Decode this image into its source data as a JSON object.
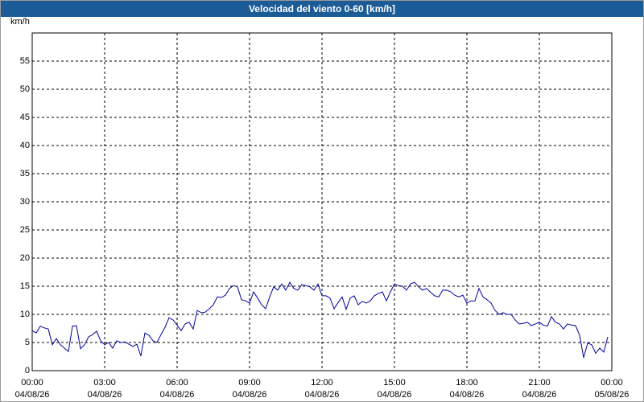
{
  "chart_data": {
    "type": "line",
    "title": "Velocidad del viento 0-60 [km/h]",
    "y_label": "km/h",
    "x": [
      0,
      10,
      20,
      30,
      40,
      50,
      60,
      70,
      80,
      90,
      100,
      110,
      120,
      130,
      140,
      150,
      160,
      170,
      180,
      190,
      200,
      210,
      220,
      230,
      240,
      250,
      260,
      270,
      280,
      290,
      300,
      310,
      320,
      330,
      340,
      350,
      360,
      370,
      380,
      390,
      400,
      410,
      420,
      430,
      440,
      450,
      460,
      470,
      480,
      490,
      500,
      510,
      520,
      530,
      540,
      550,
      560,
      570,
      580,
      590,
      600,
      610,
      620,
      630,
      640,
      650,
      660,
      670,
      680,
      690,
      700,
      710,
      720,
      730,
      740,
      750,
      760,
      770,
      780,
      790,
      800,
      810,
      820,
      830,
      840,
      850,
      860,
      870,
      880,
      890,
      900,
      910,
      920,
      930,
      940,
      950,
      960,
      970,
      980,
      990,
      1000,
      1010,
      1020,
      1030,
      1040,
      1050,
      1060,
      1070,
      1080,
      1090,
      1100,
      1110,
      1120,
      1130,
      1140,
      1150,
      1160,
      1170,
      1180,
      1190,
      1200,
      1210,
      1220,
      1230,
      1240,
      1250,
      1260,
      1270,
      1280,
      1290,
      1300,
      1310,
      1320,
      1330,
      1340,
      1350,
      1360,
      1370,
      1380,
      1390,
      1400,
      1410,
      1420,
      1430
    ],
    "series": [
      {
        "color": "#00009c",
        "values": [
          7.1,
          6.7,
          7.9,
          7.6,
          7.4,
          4.6,
          5.7,
          4.6,
          4.0,
          3.4,
          7.9,
          8.0,
          3.9,
          4.6,
          6.0,
          6.4,
          7.0,
          5.3,
          4.6,
          5.0,
          4.0,
          5.3,
          5.0,
          5.1,
          4.7,
          4.3,
          4.7,
          2.6,
          6.7,
          6.3,
          5.3,
          5.0,
          6.4,
          7.7,
          9.4,
          9.0,
          8.1,
          7.1,
          8.3,
          8.6,
          7.4,
          10.7,
          10.3,
          10.4,
          11.0,
          11.7,
          13.1,
          13.0,
          13.4,
          14.6,
          15.1,
          14.9,
          12.6,
          12.4,
          12.0,
          14.0,
          12.9,
          11.7,
          11.0,
          13.1,
          14.9,
          14.3,
          15.4,
          14.3,
          15.7,
          14.6,
          14.3,
          15.3,
          15.1,
          14.9,
          14.3,
          15.4,
          13.3,
          13.3,
          12.9,
          11.0,
          12.1,
          13.1,
          10.9,
          12.9,
          13.3,
          11.7,
          12.3,
          12.0,
          12.4,
          13.3,
          13.7,
          14.0,
          12.4,
          14.0,
          15.4,
          15.1,
          15.0,
          14.3,
          15.4,
          15.7,
          14.9,
          14.3,
          14.6,
          13.9,
          13.3,
          13.1,
          14.3,
          14.3,
          14.0,
          13.4,
          13.1,
          13.4,
          12.0,
          12.4,
          12.4,
          14.6,
          13.1,
          12.6,
          12.0,
          10.7,
          10.0,
          10.3,
          10.0,
          10.0,
          9.0,
          8.3,
          8.4,
          8.6,
          8.0,
          8.3,
          8.6,
          8.1,
          7.9,
          9.6,
          8.6,
          8.3,
          7.4,
          8.3,
          8.1,
          8.0,
          6.3,
          2.3,
          4.9,
          4.6,
          3.1,
          4.0,
          3.3,
          6.0
        ]
      }
    ],
    "xlim": [
      0,
      1440
    ],
    "xticks": [
      {
        "value": 0,
        "label": [
          "00:00",
          "04/08/26"
        ]
      },
      {
        "value": 180,
        "label": [
          "03:00",
          "04/08/26"
        ]
      },
      {
        "value": 360,
        "label": [
          "06:00",
          "04/08/26"
        ]
      },
      {
        "value": 540,
        "label": [
          "09:00",
          "04/08/26"
        ]
      },
      {
        "value": 720,
        "label": [
          "12:00",
          "04/08/26"
        ]
      },
      {
        "value": 900,
        "label": [
          "15:00",
          "04/08/26"
        ]
      },
      {
        "value": 1080,
        "label": [
          "18:00",
          "04/08/26"
        ]
      },
      {
        "value": 1260,
        "label": [
          "21:00",
          "04/08/26"
        ]
      },
      {
        "value": 1440,
        "label": [
          "00:00",
          "05/08/26"
        ]
      }
    ],
    "ylim": [
      0,
      60
    ],
    "yticks": [
      0,
      5,
      10,
      15,
      20,
      25,
      30,
      35,
      40,
      45,
      50,
      55
    ],
    "grid": true
  }
}
